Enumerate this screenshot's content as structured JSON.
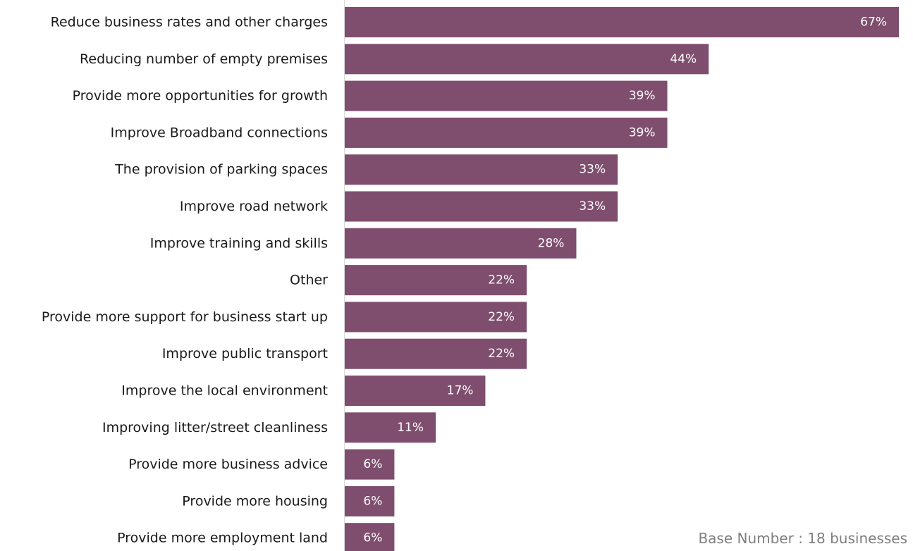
{
  "colors": {
    "bar": "#7f4e6e",
    "axis": "#d9d9d9",
    "text": "#1a1a1a",
    "value_text": "#ffffff",
    "note": "#7f7f7f"
  },
  "note": "Base Number : 18 businesses",
  "chart_data": {
    "type": "bar",
    "orientation": "horizontal",
    "categories": [
      "Reduce business rates and other charges",
      "Reducing number of empty premises",
      "Provide more opportunities for growth",
      "Improve Broadband connections",
      "The provision of parking spaces",
      "Improve road network",
      "Improve training and skills",
      "Other",
      "Provide more support for business start up",
      "Improve public transport",
      "Improve the local environment",
      "Improving litter/street cleanliness",
      "Provide more business advice",
      "Provide more housing",
      "Provide more employment land"
    ],
    "values": [
      67,
      44,
      39,
      39,
      33,
      33,
      28,
      22,
      22,
      22,
      17,
      11,
      6,
      6,
      6
    ],
    "value_labels": [
      "67%",
      "44%",
      "39%",
      "39%",
      "33%",
      "33%",
      "28%",
      "22%",
      "22%",
      "22%",
      "17%",
      "11%",
      "6%",
      "6%",
      "6%"
    ],
    "title": "",
    "xlabel": "",
    "ylabel": "",
    "xlim": [
      0,
      67
    ],
    "grid": false,
    "legend": "none"
  }
}
